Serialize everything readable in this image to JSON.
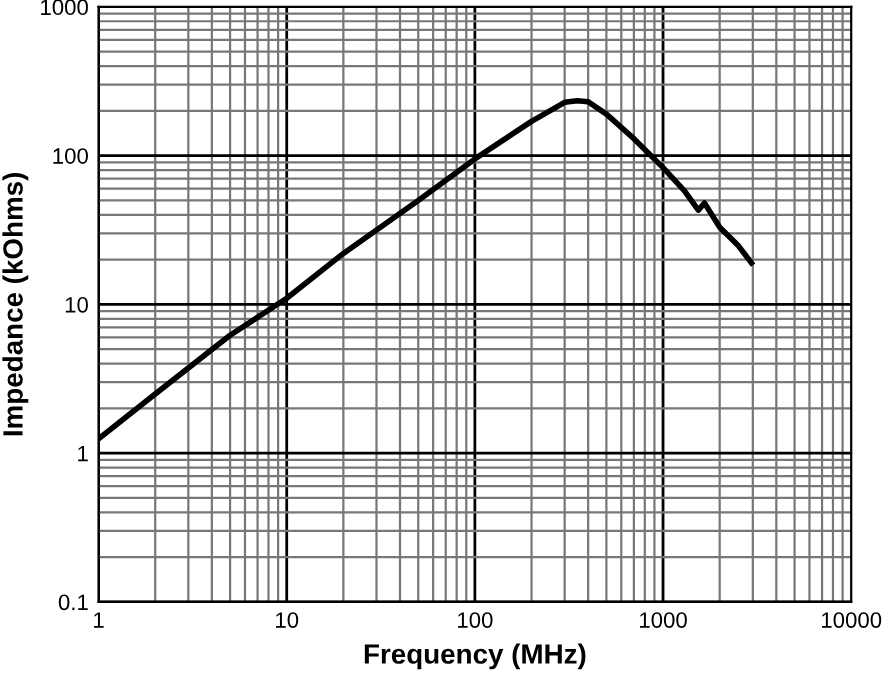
{
  "chart_data": {
    "type": "line",
    "xlabel": "Frequency (MHz)",
    "ylabel": "Impedance (kOhms)",
    "log": "xy",
    "xlim": [
      1,
      10000
    ],
    "ylim": [
      0.1,
      1000
    ],
    "xticks": [
      1,
      10,
      100,
      1000,
      10000
    ],
    "yticks": [
      0.1,
      1,
      10,
      100,
      1000
    ],
    "grid": true,
    "marker": "none",
    "line_style": "solid",
    "series": [
      {
        "color": "#000000",
        "x": [
          1,
          2,
          5,
          10,
          20,
          50,
          100,
          200,
          300,
          350,
          400,
          500,
          700,
          1000,
          1300,
          1540,
          1660,
          2000,
          2500,
          2950
        ],
        "values": [
          1.25,
          2.5,
          6.2,
          11,
          22,
          50,
          95,
          170,
          228,
          234,
          230,
          190,
          130,
          83,
          58,
          43,
          48,
          33,
          25,
          19
        ]
      }
    ]
  }
}
